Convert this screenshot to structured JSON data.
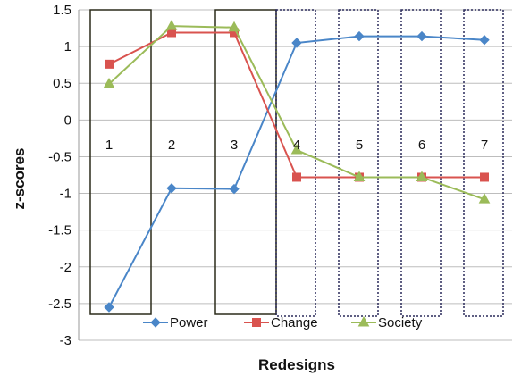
{
  "chart_data": {
    "type": "line",
    "title": "",
    "xlabel": "Redesigns",
    "ylabel": "z-scores",
    "categories": [
      "1",
      "2",
      "3",
      "4",
      "5",
      "6",
      "7"
    ],
    "ylim": [
      -3,
      1.5
    ],
    "yticks": [
      "1.5",
      "1",
      "0.5",
      "0",
      "-0.5",
      "-1",
      "-1.5",
      "-2",
      "-2.5",
      "-3"
    ],
    "grid": true,
    "legend_position": "bottom",
    "series": [
      {
        "name": "Power",
        "color": "#4a86c8",
        "marker": "diamond",
        "values": [
          -2.55,
          -0.93,
          -0.94,
          1.05,
          1.14,
          1.14,
          1.09
        ]
      },
      {
        "name": "Change",
        "color": "#d9534f",
        "marker": "square",
        "values": [
          0.76,
          1.19,
          1.19,
          -0.78,
          -0.78,
          -0.78,
          -0.78
        ]
      },
      {
        "name": "Society",
        "color": "#9bbb59",
        "marker": "triangle",
        "values": [
          0.49,
          1.28,
          1.26,
          -0.41,
          -0.78,
          -0.78,
          -1.08
        ]
      }
    ]
  }
}
